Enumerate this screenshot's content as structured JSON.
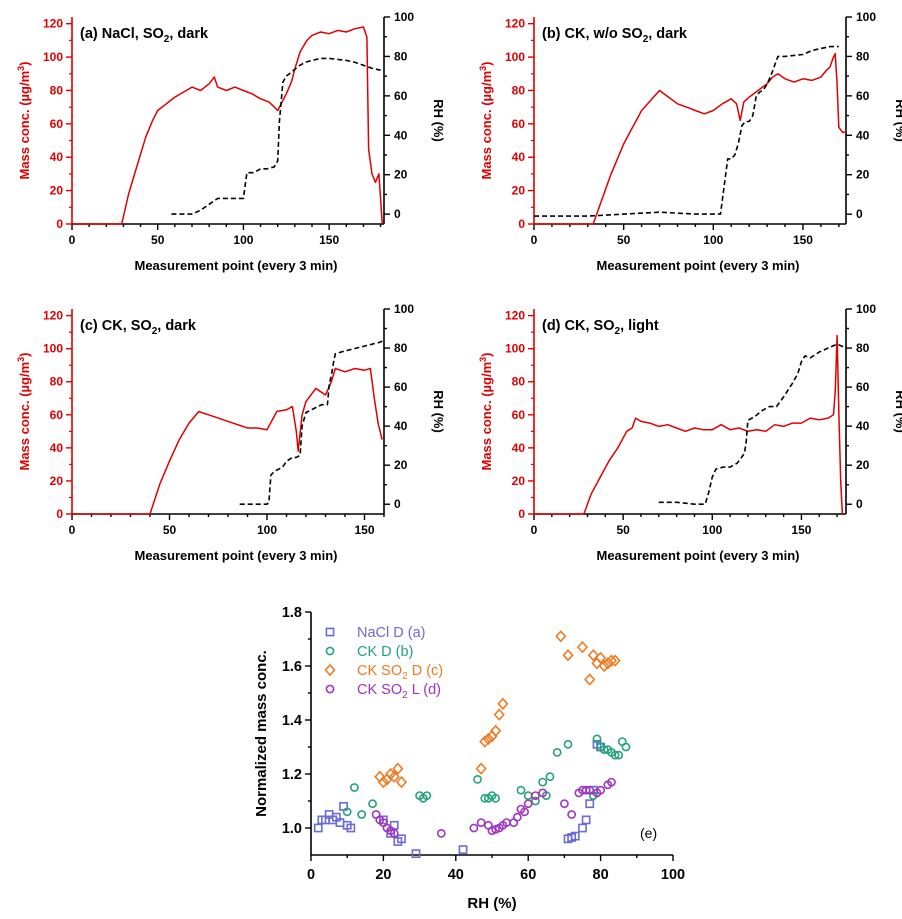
{
  "chart_data": [
    {
      "type": "line",
      "panel": "a",
      "title_parts": [
        "(a) NaCl, SO",
        "2",
        ", dark"
      ],
      "xlabel": "Measurement point (every 3 min)",
      "ylabel_left": "Mass conc. (µg/m",
      "ylabel_left_sup": "3",
      "ylabel_left_end": ")",
      "ylabel_right": "RH (%)",
      "xlim": [
        0,
        182
      ],
      "ylim_left": [
        0,
        124
      ],
      "ylim_right": [
        -5,
        100
      ],
      "x_ticks": [
        0,
        50,
        100,
        150
      ],
      "y_left_ticks": [
        0,
        20,
        40,
        60,
        80,
        100,
        120
      ],
      "y_right_ticks": [
        0,
        20,
        40,
        60,
        80,
        100
      ],
      "series": [
        {
          "axis": "left",
          "color": "#e00000",
          "style": "solid",
          "x": [
            0,
            29,
            33,
            38,
            43,
            47,
            50,
            55,
            60,
            65,
            70,
            75,
            80,
            83,
            85,
            90,
            95,
            100,
            105,
            110,
            115,
            118,
            120,
            125,
            128,
            130,
            133,
            137,
            140,
            145,
            150,
            155,
            160,
            165,
            170,
            172,
            173,
            175,
            177,
            179,
            181
          ],
          "y": [
            0,
            0,
            18,
            35,
            52,
            62,
            68,
            72,
            76,
            79,
            82,
            80,
            84,
            88,
            82,
            80,
            82,
            80,
            78,
            75,
            73,
            70,
            68,
            78,
            85,
            93,
            103,
            110,
            113,
            115,
            114,
            116,
            115,
            117,
            118,
            112,
            45,
            30,
            25,
            30,
            0
          ]
        },
        {
          "axis": "right",
          "color": "#000000",
          "style": "dashed",
          "x": [
            58,
            70,
            75,
            85,
            95,
            100,
            102,
            104,
            106,
            110,
            114,
            118,
            120,
            121,
            123,
            125,
            128,
            132,
            136,
            140,
            145,
            150,
            155,
            160,
            165,
            170,
            175,
            180
          ],
          "y": [
            0,
            0,
            2,
            8,
            8,
            8,
            21,
            21,
            21,
            23,
            23,
            24,
            27,
            47,
            67,
            70,
            72,
            75,
            77,
            78,
            79,
            79,
            78.5,
            78,
            77,
            75.5,
            74,
            73
          ]
        }
      ]
    },
    {
      "type": "line",
      "panel": "b",
      "title_parts": [
        "(b) CK, w/o SO",
        "2",
        ", dark"
      ],
      "xlabel": "Measurement point (every 3 min)",
      "ylabel_left": "Mass conc. (µg/m",
      "ylabel_left_sup": "3",
      "ylabel_left_end": ")",
      "ylabel_right": "RH (%)",
      "xlim": [
        0,
        174
      ],
      "ylim_left": [
        0,
        124
      ],
      "ylim_right": [
        -5,
        100
      ],
      "x_ticks": [
        0,
        50,
        100,
        150
      ],
      "y_left_ticks": [
        0,
        20,
        40,
        60,
        80,
        100,
        120
      ],
      "y_right_ticks": [
        0,
        20,
        40,
        60,
        80,
        100
      ],
      "series": [
        {
          "axis": "left",
          "color": "#e00000",
          "style": "solid",
          "x": [
            0,
            33,
            38,
            43,
            50,
            55,
            60,
            65,
            70,
            75,
            80,
            85,
            90,
            95,
            100,
            105,
            110,
            113,
            115,
            117,
            120,
            125,
            130,
            133,
            136,
            140,
            145,
            150,
            155,
            160,
            163,
            165,
            167,
            168,
            169,
            170,
            172,
            174
          ],
          "y": [
            0,
            0,
            15,
            30,
            48,
            58,
            68,
            74,
            80,
            76,
            72,
            70,
            68,
            66,
            68,
            72,
            75,
            72,
            62,
            73,
            76,
            80,
            84,
            88,
            90,
            87,
            85,
            87,
            86,
            88,
            92,
            94,
            100,
            102,
            85,
            58,
            55,
            55
          ]
        },
        {
          "axis": "right",
          "color": "#000000",
          "style": "dashed",
          "x": [
            0,
            30,
            50,
            70,
            90,
            104,
            106,
            108,
            110,
            112,
            114,
            116,
            118,
            120,
            122,
            124,
            126,
            128,
            130,
            132,
            134,
            136,
            140,
            150,
            155,
            160,
            165,
            170
          ],
          "y": [
            -1,
            -1,
            0,
            1,
            0,
            0,
            14,
            28,
            28,
            30,
            36,
            45,
            47,
            47,
            50,
            60,
            62,
            63,
            66,
            70,
            75,
            80,
            80,
            81,
            83,
            84,
            85,
            85
          ]
        }
      ]
    },
    {
      "type": "line",
      "panel": "c",
      "title_parts": [
        "(c) CK, SO",
        "2",
        ", dark"
      ],
      "xlabel": "Measurement point (every 3 min)",
      "ylabel_left": "Mass conc. (µg/m",
      "ylabel_left_sup": "3",
      "ylabel_left_end": ")",
      "ylabel_right": "RH (%)",
      "xlim": [
        0,
        160
      ],
      "ylim_left": [
        0,
        124
      ],
      "ylim_right": [
        -5,
        100
      ],
      "x_ticks": [
        0,
        50,
        100,
        150
      ],
      "y_left_ticks": [
        0,
        20,
        40,
        60,
        80,
        100,
        120
      ],
      "y_right_ticks": [
        0,
        20,
        40,
        60,
        80,
        100
      ],
      "series": [
        {
          "axis": "left",
          "color": "#e00000",
          "style": "solid",
          "x": [
            0,
            40,
            45,
            50,
            55,
            60,
            65,
            70,
            75,
            80,
            85,
            90,
            95,
            100,
            105,
            110,
            113,
            115,
            116,
            118,
            120,
            125,
            130,
            133,
            135,
            140,
            145,
            150,
            153,
            155,
            157,
            159
          ],
          "y": [
            0,
            0,
            18,
            32,
            45,
            55,
            62,
            60,
            58,
            56,
            54,
            52,
            52,
            51,
            62,
            63,
            65,
            50,
            38,
            60,
            68,
            76,
            72,
            80,
            88,
            86,
            88,
            87,
            88,
            70,
            55,
            45
          ]
        },
        {
          "axis": "right",
          "color": "#000000",
          "style": "dashed",
          "x": [
            86,
            94,
            100,
            101,
            102,
            104,
            106,
            108,
            110,
            113,
            115,
            117,
            118,
            120,
            124,
            128,
            130,
            131,
            132,
            133,
            134,
            135,
            138,
            142,
            146,
            150,
            154,
            158,
            160
          ],
          "y": [
            0,
            0,
            0,
            1,
            15,
            17,
            18,
            19,
            22,
            24,
            24,
            25,
            40,
            47,
            49,
            51,
            51,
            51,
            62,
            66,
            72,
            77,
            78,
            79,
            80,
            81,
            82,
            83,
            84
          ]
        }
      ]
    },
    {
      "type": "line",
      "panel": "d",
      "title_parts": [
        "(d) CK, SO",
        "2",
        ", light"
      ],
      "xlabel": "Measurement point (every 3 min)",
      "ylabel_left": "Mass conc. (µg/m",
      "ylabel_left_sup": "3",
      "ylabel_left_end": ")",
      "ylabel_right": "RH (%)",
      "xlim": [
        0,
        175
      ],
      "ylim_left": [
        0,
        124
      ],
      "ylim_right": [
        -5,
        100
      ],
      "x_ticks": [
        0,
        50,
        100,
        150
      ],
      "y_left_ticks": [
        0,
        20,
        40,
        60,
        80,
        100,
        120
      ],
      "y_right_ticks": [
        0,
        20,
        40,
        60,
        80,
        100
      ],
      "series": [
        {
          "axis": "left",
          "color": "#e00000",
          "style": "solid",
          "x": [
            0,
            28,
            32,
            37,
            42,
            47,
            52,
            55,
            57,
            60,
            65,
            70,
            75,
            80,
            85,
            90,
            95,
            100,
            105,
            110,
            115,
            120,
            125,
            130,
            135,
            140,
            145,
            150,
            155,
            160,
            165,
            168,
            169,
            170,
            171,
            172,
            173
          ],
          "y": [
            0,
            0,
            12,
            22,
            32,
            40,
            50,
            52,
            58,
            56,
            55,
            53,
            54,
            52,
            50,
            52,
            51,
            51,
            54,
            51,
            52,
            50,
            51,
            50,
            54,
            53,
            55,
            55,
            58,
            57,
            58,
            60,
            75,
            108,
            60,
            20,
            0
          ]
        },
        {
          "axis": "right",
          "color": "#000000",
          "style": "dashed",
          "x": [
            70,
            80,
            90,
            96,
            98,
            100,
            102,
            106,
            110,
            114,
            118,
            119,
            120,
            124,
            128,
            132,
            136,
            140,
            145,
            148,
            150,
            152,
            155,
            160,
            165,
            170,
            175
          ],
          "y": [
            1,
            1,
            0,
            0,
            6,
            14,
            18,
            19,
            19,
            21,
            26,
            32,
            43,
            45,
            48,
            50,
            50,
            55,
            62,
            67,
            73,
            76,
            75,
            78,
            80,
            82,
            80
          ]
        }
      ]
    },
    {
      "type": "scatter",
      "panel": "e",
      "xlabel": "RH (%)",
      "ylabel": "Normalized mass conc.",
      "xlim": [
        0,
        100
      ],
      "ylim": [
        0.9,
        1.8
      ],
      "x_ticks": [
        0,
        20,
        40,
        60,
        80,
        100
      ],
      "y_ticks": [
        1.0,
        1.2,
        1.4,
        1.6,
        1.8
      ],
      "panel_label": "(e)",
      "legend_position": "top-left",
      "series": [
        {
          "name_parts": [
            "NaCl D (a)"
          ],
          "marker": "square",
          "color": "#6b6bd6",
          "x": [
            2,
            3,
            4,
            5,
            6,
            7,
            8,
            9,
            10,
            11,
            20,
            22,
            23,
            24,
            25,
            29,
            42,
            71,
            72,
            73,
            75,
            76,
            77,
            78,
            79,
            80
          ],
          "y": [
            1.0,
            1.03,
            1.03,
            1.05,
            1.03,
            1.04,
            1.02,
            1.08,
            1.01,
            1.0,
            1.03,
            0.98,
            1.01,
            0.95,
            0.96,
            0.905,
            0.92,
            0.96,
            0.965,
            0.97,
            1.0,
            1.03,
            1.09,
            1.14,
            1.31,
            1.3
          ]
        },
        {
          "name_parts": [
            "CK D (b)"
          ],
          "marker": "circle",
          "color": "#22a37a",
          "x": [
            10,
            12,
            14,
            17,
            30,
            31,
            32,
            46,
            48,
            49,
            50,
            51,
            58,
            60,
            62,
            64,
            65,
            66,
            68,
            71,
            78,
            79,
            80,
            81,
            82,
            83,
            84,
            85,
            86,
            87
          ],
          "y": [
            1.06,
            1.15,
            1.05,
            1.09,
            1.12,
            1.11,
            1.12,
            1.18,
            1.11,
            1.11,
            1.12,
            1.11,
            1.14,
            1.12,
            1.1,
            1.17,
            1.12,
            1.19,
            1.28,
            1.31,
            1.12,
            1.33,
            1.3,
            1.29,
            1.29,
            1.28,
            1.27,
            1.27,
            1.32,
            1.3
          ]
        },
        {
          "name_parts": [
            "CK SO",
            "2",
            " D (c)"
          ],
          "marker": "diamond",
          "color": "#f07a22",
          "x": [
            19,
            20,
            21,
            22,
            23,
            24,
            25,
            47,
            48,
            49,
            50,
            51,
            52,
            53,
            69,
            71,
            75,
            77,
            78,
            79,
            80,
            81,
            82,
            83,
            84
          ],
          "y": [
            1.19,
            1.17,
            1.18,
            1.2,
            1.19,
            1.22,
            1.17,
            1.22,
            1.32,
            1.33,
            1.34,
            1.36,
            1.42,
            1.46,
            1.71,
            1.64,
            1.67,
            1.55,
            1.64,
            1.61,
            1.63,
            1.6,
            1.61,
            1.62,
            1.62
          ]
        },
        {
          "name_parts": [
            "CK SO",
            "2",
            " L (d)"
          ],
          "marker": "circle",
          "color": "#a033c0",
          "x": [
            18,
            19,
            20,
            21,
            22,
            23,
            36,
            45,
            47,
            49,
            50,
            51,
            52,
            53,
            54,
            56,
            57,
            58,
            59,
            60,
            62,
            64,
            70,
            72,
            74,
            75,
            76,
            77,
            79,
            80,
            82,
            83
          ],
          "y": [
            1.05,
            1.03,
            1.02,
            1.0,
            0.99,
            0.98,
            0.98,
            1.0,
            1.02,
            1.01,
            0.99,
            0.995,
            1.0,
            1.01,
            1.02,
            1.02,
            1.04,
            1.07,
            1.06,
            1.09,
            1.12,
            1.13,
            1.09,
            1.05,
            1.13,
            1.14,
            1.14,
            1.14,
            1.13,
            1.14,
            1.16,
            1.17
          ]
        }
      ]
    }
  ]
}
